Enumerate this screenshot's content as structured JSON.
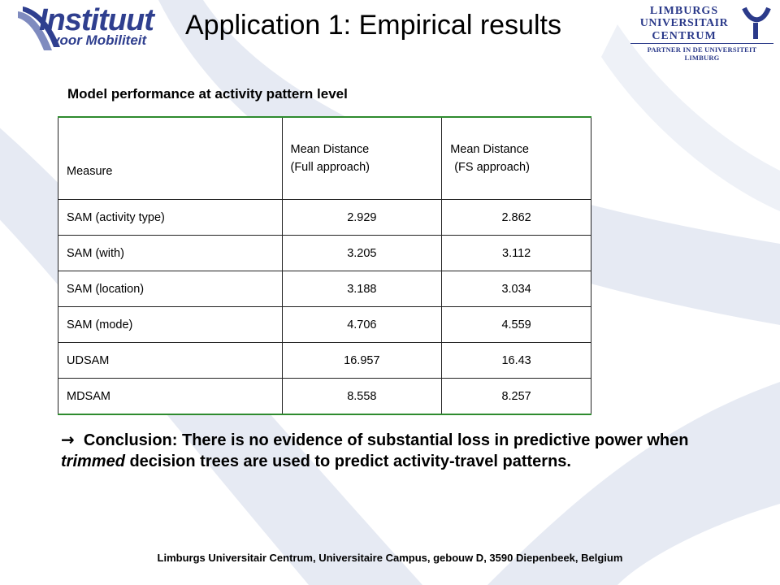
{
  "header": {
    "logo_left_line1": "Instituut",
    "logo_left_line2": "voor Mobiliteit",
    "title": "Application 1: Empirical results",
    "logo_right": {
      "line1": "LIMBURGS",
      "line2": "UNIVERSITAIR",
      "line3": "CENTRUM",
      "tagline": "PARTNER IN DE UNIVERSITEIT LIMBURG"
    }
  },
  "subtitle": "Model performance at activity pattern level",
  "table": {
    "header": {
      "measure": "Measure",
      "col2_line1": "Mean Distance",
      "col2_line2": "(Full approach)",
      "col3_line1": "Mean Distance",
      "col3_line2": "(FS approach)"
    },
    "rows": [
      {
        "measure": "SAM (activity type)",
        "full": "2.929",
        "fs": "2.862"
      },
      {
        "measure": "SAM (with)",
        "full": "3.205",
        "fs": "3.112"
      },
      {
        "measure": "SAM (location)",
        "full": "3.188",
        "fs": "3.034"
      },
      {
        "measure": "SAM (mode)",
        "full": "4.706",
        "fs": "4.559"
      },
      {
        "measure": "UDSAM",
        "full": "16.957",
        "fs": "16.43"
      },
      {
        "measure": "MDSAM",
        "full": "8.558",
        "fs": "8.257"
      }
    ]
  },
  "conclusion": {
    "arrow": "→",
    "part1": "Conclusion: There is no evidence of substantial loss in predictive power when ",
    "emphasis": "trimmed",
    "part2": " decision trees are used to predict activity-travel patterns."
  },
  "footer": "Limburgs Universitair Centrum, Universitaire Campus, gebouw D, 3590 Diepenbeek, Belgium",
  "colors": {
    "swoosh": "#e6eaf3",
    "logo_blue": "#2f3f8f",
    "table_rule": "#2e8b2e"
  },
  "icons": [
    "institute-swoosh-icon",
    "university-emblem-icon"
  ]
}
